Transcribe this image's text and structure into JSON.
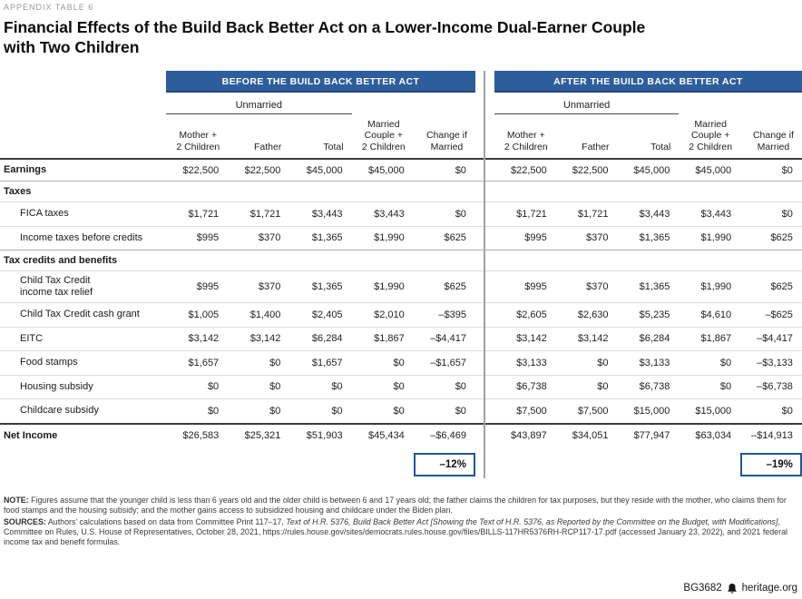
{
  "page": {
    "eyebrow": "APPENDIX TABLE 6",
    "title_lines": [
      "Financial Effects of the Build Back Better Act on a Lower-Income Dual-Earner Couple",
      "with Two Children"
    ]
  },
  "table": {
    "before_banner": "BEFORE THE BUILD BACK BETTER ACT",
    "after_banner": "AFTER THE BUILD BACK BETTER ACT",
    "unmarried_label": "Unmarried",
    "columns": [
      [
        "Mother +",
        "2 Children"
      ],
      [
        "Father"
      ],
      [
        "Total"
      ],
      [
        "Married",
        "Couple +",
        "2 Children"
      ],
      [
        "Change if",
        "Married"
      ]
    ],
    "rows": [
      {
        "label": "Earnings",
        "style": "r-bold",
        "before": [
          "$22,500",
          "$22,500",
          "$45,000",
          "$45,000",
          "$0"
        ],
        "after": [
          "$22,500",
          "$22,500",
          "$45,000",
          "$45,000",
          "$0"
        ]
      },
      {
        "label": "Taxes",
        "style": "r-section",
        "before": null,
        "after": null
      },
      {
        "label": "FICA taxes",
        "style": "r-indent",
        "before": [
          "$1,721",
          "$1,721",
          "$3,443",
          "$3,443",
          "$0"
        ],
        "after": [
          "$1,721",
          "$1,721",
          "$3,443",
          "$3,443",
          "$0"
        ]
      },
      {
        "label": "Income taxes before credits",
        "style": "r-indent",
        "before": [
          "$995",
          "$370",
          "$1,365",
          "$1,990",
          "$625"
        ],
        "after": [
          "$995",
          "$370",
          "$1,365",
          "$1,990",
          "$625"
        ]
      },
      {
        "label": "Tax credits and benefits",
        "style": "r-section",
        "before": null,
        "after": null
      },
      {
        "label": "Child Tax Credit\nincome tax relief",
        "style": "r-indent",
        "before": [
          "$995",
          "$370",
          "$1,365",
          "$1,990",
          "$625"
        ],
        "after": [
          "$995",
          "$370",
          "$1,365",
          "$1,990",
          "$625"
        ]
      },
      {
        "label": "Child Tax Credit cash grant",
        "style": "r-indent",
        "before": [
          "$1,005",
          "$1,400",
          "$2,405",
          "$2,010",
          "–$395"
        ],
        "after": [
          "$2,605",
          "$2,630",
          "$5,235",
          "$4,610",
          "–$625"
        ]
      },
      {
        "label": "EITC",
        "style": "r-indent",
        "before": [
          "$3,142",
          "$3,142",
          "$6,284",
          "$1,867",
          "–$4,417"
        ],
        "after": [
          "$3,142",
          "$3,142",
          "$6,284",
          "$1,867",
          "–$4,417"
        ]
      },
      {
        "label": "Food stamps",
        "style": "r-indent",
        "before": [
          "$1,657",
          "$0",
          "$1,657",
          "$0",
          "–$1,657"
        ],
        "after": [
          "$3,133",
          "$0",
          "$3,133",
          "$0",
          "–$3,133"
        ]
      },
      {
        "label": "Housing subsidy",
        "style": "r-indent",
        "before": [
          "$0",
          "$0",
          "$0",
          "$0",
          "$0"
        ],
        "after": [
          "$6,738",
          "$0",
          "$6,738",
          "$0",
          "–$6,738"
        ]
      },
      {
        "label": "Childcare subsidy",
        "style": "r-indent",
        "before": [
          "$0",
          "$0",
          "$0",
          "$0",
          "$0"
        ],
        "after": [
          "$7,500",
          "$7,500",
          "$15,000",
          "$15,000",
          "$0"
        ]
      },
      {
        "label": "Net Income",
        "style": "r-total",
        "before": [
          "$26,583",
          "$25,321",
          "$51,903",
          "$45,434",
          "–$6,469"
        ],
        "after": [
          "$43,897",
          "$34,051",
          "$77,947",
          "$63,034",
          "–$14,913"
        ]
      }
    ],
    "summary": {
      "before_change": "–12%",
      "after_change": "–19%"
    }
  },
  "notes": {
    "note_label": "NOTE:",
    "note_text": "Figures assume that the younger child is less than 6 years old and the older child is between 6 and 17 years old; the father claims the children for tax purposes, but they reside with the mother, who claims them for food stamps and the housing subsidy; and the mother gains access to subsidized housing and childcare under the Biden plan.",
    "sources_label": "SOURCES:",
    "sources_pre": "Authors’ calculations based on data from Committee Print 117–17, ",
    "sources_italic": "Text of H.R. 5376, Build Back Better Act [Showing the Text of H.R. 5376, as Reported by the Committee on the Budget, with Modifications]",
    "sources_post": ", Committee on Rules, U.S. House of Representatives, October 28, 2021, https://rules.house.gov/sites/democrats.rules.house.gov/files/BILLS-117HR5376RH-RCP117-17.pdf (accessed January 23, 2022), and 2021 federal income tax and benefit formulas."
  },
  "footer": {
    "doc_id": "BG3682",
    "site": "heritage.org"
  }
}
